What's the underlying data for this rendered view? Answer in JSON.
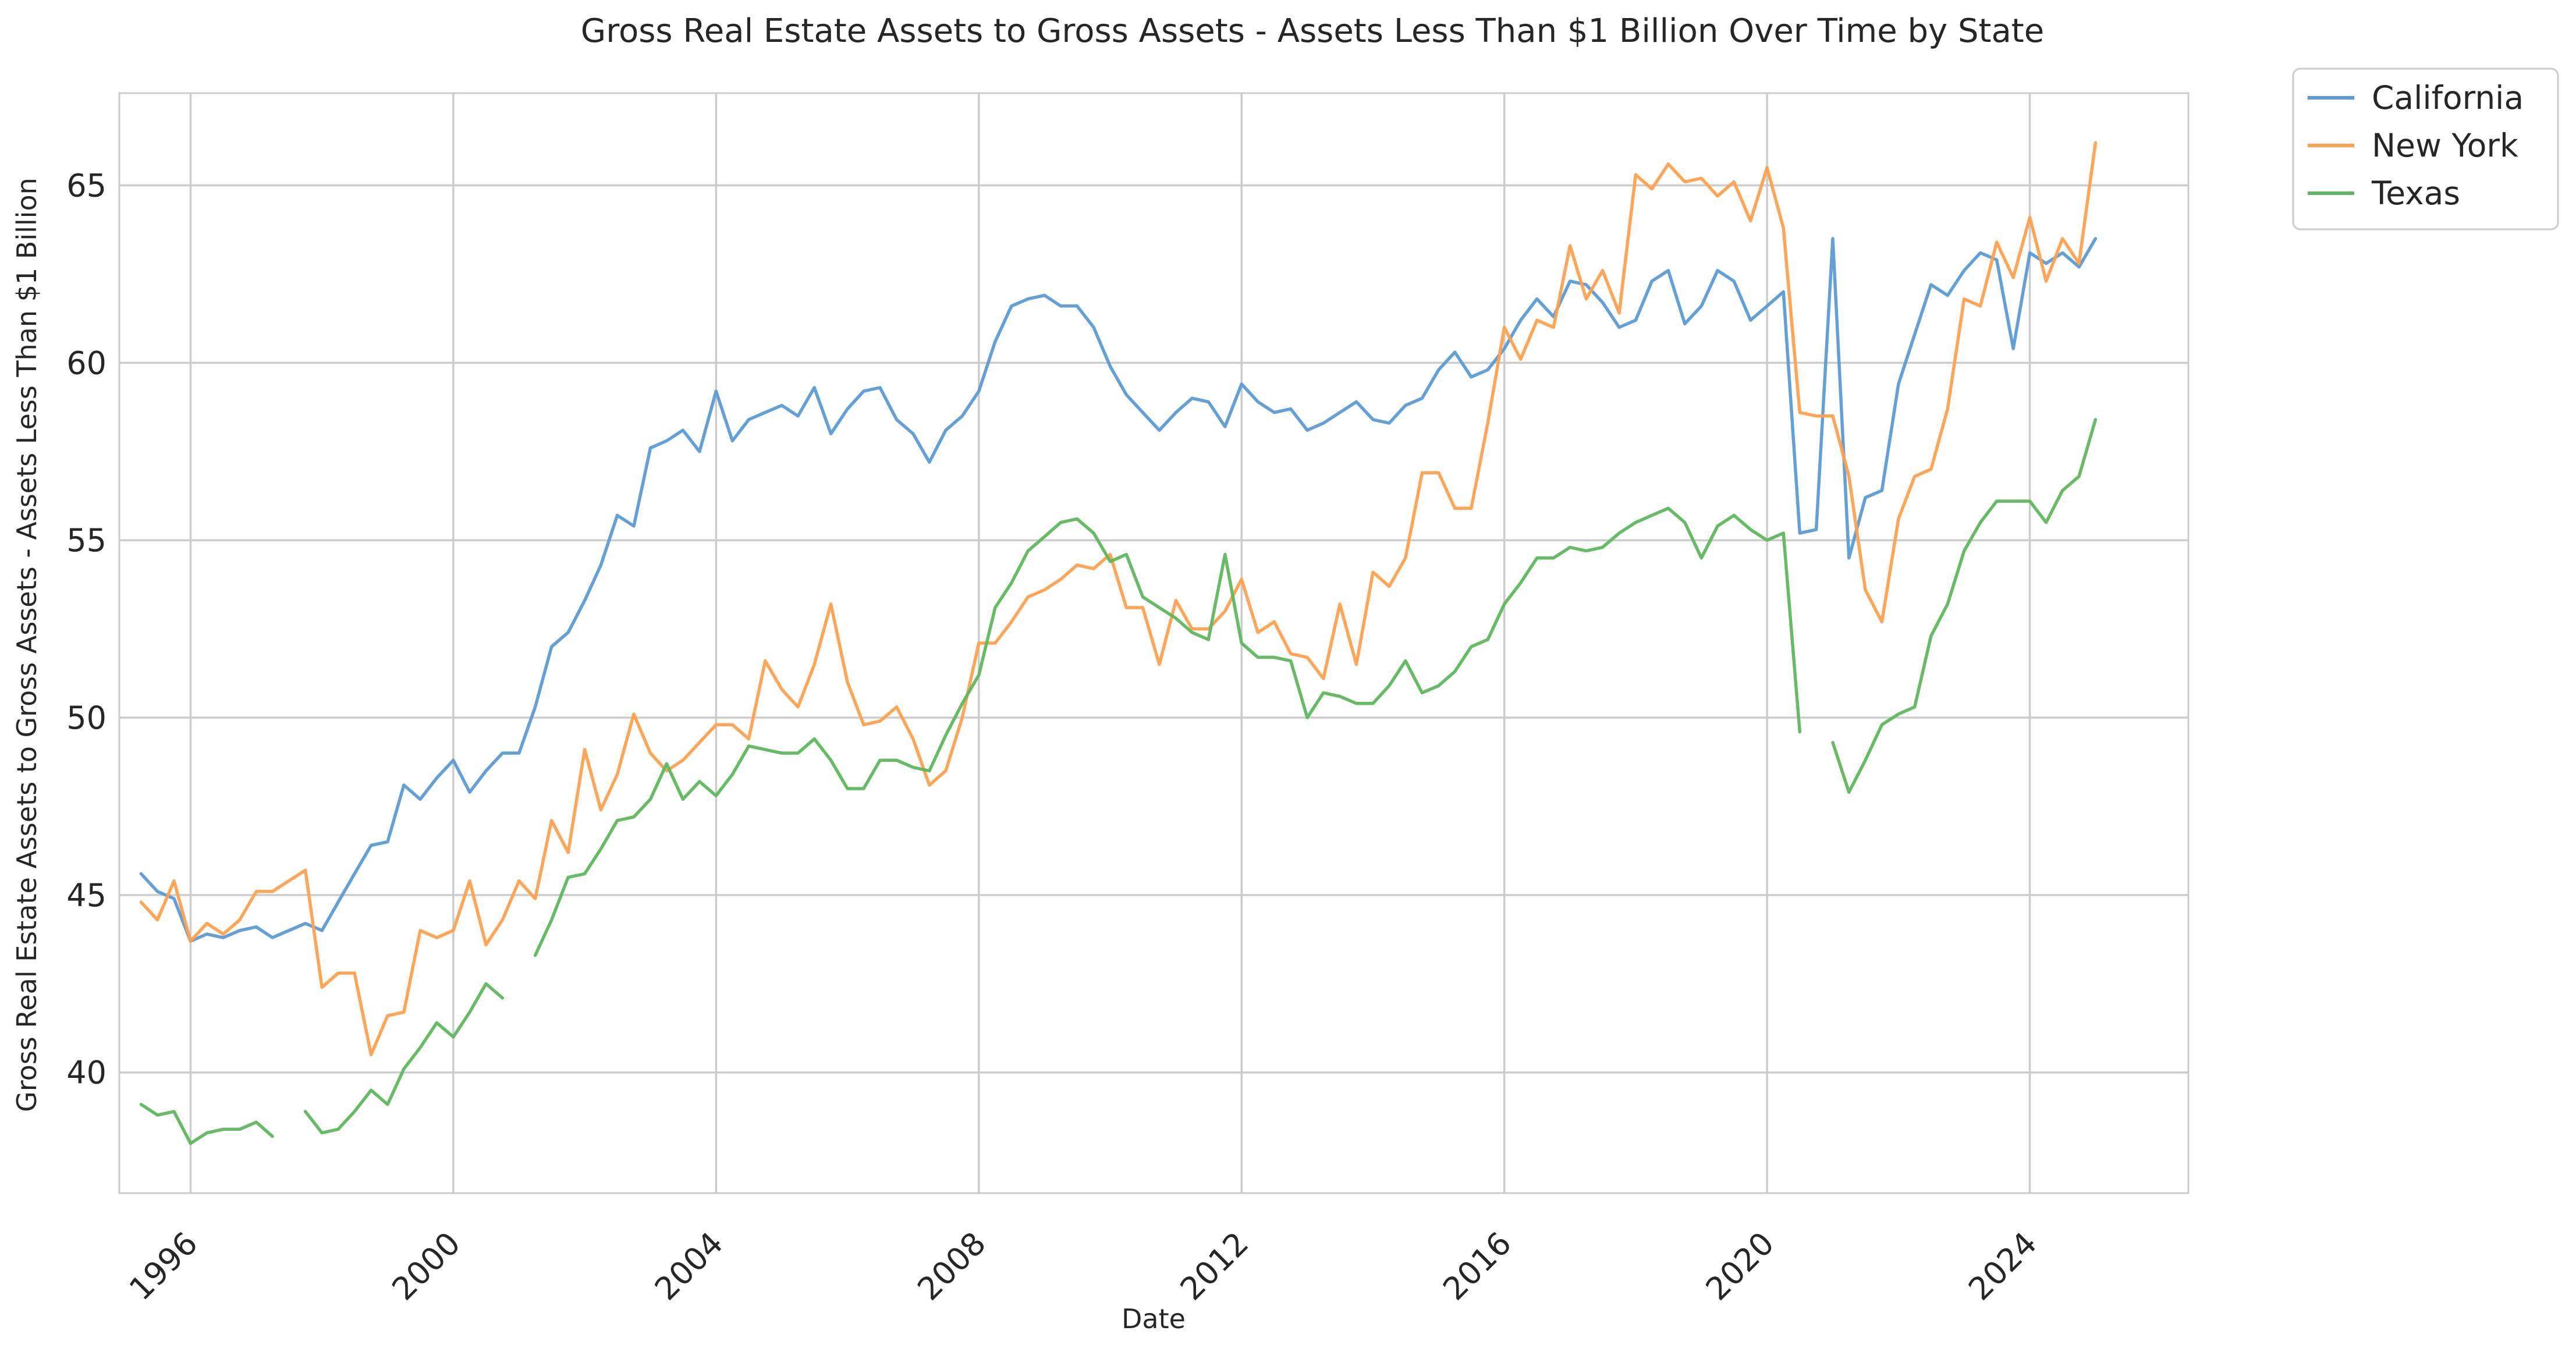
{
  "chart_data": {
    "type": "line",
    "title": "Gross Real Estate Assets to Gross Assets - Assets Less Than $1 Billion Over Time by State",
    "xlabel": "Date",
    "ylabel": "Gross Real Estate Assets to Gross Assets - Assets Less Than $1 Billion",
    "x_is_date": true,
    "xlim": [
      "1994-12-01",
      "2026-06-01"
    ],
    "ylim": [
      36.6,
      67.6
    ],
    "x_ticks": [
      "1996",
      "2000",
      "2004",
      "2008",
      "2012",
      "2016",
      "2020",
      "2024"
    ],
    "y_ticks": [
      40,
      45,
      50,
      55,
      60,
      65
    ],
    "grid": true,
    "legend_position": "outside-top-right",
    "colors": {
      "California": "#5a9bd5",
      "New York": "#ffa04d",
      "Texas": "#5db85c",
      "grid": "#cccccc",
      "spine": "#cccccc",
      "text": "#262626"
    },
    "x": [
      "1995-04-01",
      "1995-07-01",
      "1995-10-01",
      "1996-01-01",
      "1996-04-01",
      "1996-07-01",
      "1996-10-01",
      "1997-01-01",
      "1997-04-01",
      "1997-07-01",
      "1997-10-01",
      "1998-01-01",
      "1998-04-01",
      "1998-07-01",
      "1998-10-01",
      "1999-01-01",
      "1999-04-01",
      "1999-07-01",
      "1999-10-01",
      "2000-01-01",
      "2000-04-01",
      "2000-07-01",
      "2000-10-01",
      "2001-01-01",
      "2001-04-01",
      "2001-07-01",
      "2001-10-01",
      "2002-01-01",
      "2002-04-01",
      "2002-07-01",
      "2002-10-01",
      "2003-01-01",
      "2003-04-01",
      "2003-07-01",
      "2003-10-01",
      "2004-01-01",
      "2004-04-01",
      "2004-07-01",
      "2004-10-01",
      "2005-01-01",
      "2005-04-01",
      "2005-07-01",
      "2005-10-01",
      "2006-01-01",
      "2006-04-01",
      "2006-07-01",
      "2006-10-01",
      "2007-01-01",
      "2007-04-01",
      "2007-07-01",
      "2007-10-01",
      "2008-01-01",
      "2008-04-01",
      "2008-07-01",
      "2008-10-01",
      "2009-01-01",
      "2009-04-01",
      "2009-07-01",
      "2009-10-01",
      "2010-01-01",
      "2010-04-01",
      "2010-07-01",
      "2010-10-01",
      "2011-01-01",
      "2011-04-01",
      "2011-07-01",
      "2011-10-01",
      "2012-01-01",
      "2012-04-01",
      "2012-07-01",
      "2012-10-01",
      "2013-01-01",
      "2013-04-01",
      "2013-07-01",
      "2013-10-01",
      "2014-01-01",
      "2014-04-01",
      "2014-07-01",
      "2014-10-01",
      "2015-01-01",
      "2015-04-01",
      "2015-07-01",
      "2015-10-01",
      "2016-01-01",
      "2016-04-01",
      "2016-07-01",
      "2016-10-01",
      "2017-01-01",
      "2017-04-01",
      "2017-07-01",
      "2017-10-01",
      "2018-01-01",
      "2018-04-01",
      "2018-07-01",
      "2018-10-01",
      "2019-01-01",
      "2019-04-01",
      "2019-07-01",
      "2019-10-01",
      "2020-01-01",
      "2020-04-01",
      "2020-07-01",
      "2020-10-01",
      "2021-01-01",
      "2021-04-01",
      "2021-07-01",
      "2021-10-01",
      "2022-01-01",
      "2022-04-01",
      "2022-07-01",
      "2022-10-01",
      "2023-01-01",
      "2023-04-01",
      "2023-07-01",
      "2023-10-01",
      "2024-01-01",
      "2024-04-01",
      "2024-07-01",
      "2024-10-01",
      "2025-01-01"
    ],
    "series": [
      {
        "name": "California",
        "values": [
          45.6,
          45.1,
          44.9,
          43.7,
          43.9,
          43.8,
          44.0,
          44.1,
          43.8,
          44.0,
          44.2,
          44.0,
          44.8,
          45.6,
          46.4,
          46.5,
          48.1,
          47.7,
          48.3,
          48.8,
          47.9,
          48.5,
          49.0,
          49.0,
          50.3,
          52.0,
          52.4,
          53.3,
          54.3,
          55.7,
          55.4,
          57.6,
          57.8,
          58.1,
          57.5,
          59.2,
          57.8,
          58.4,
          58.6,
          58.8,
          58.5,
          59.3,
          58.0,
          58.7,
          59.2,
          59.3,
          58.4,
          58.0,
          57.2,
          58.1,
          58.5,
          59.2,
          60.6,
          61.6,
          61.8,
          61.9,
          61.6,
          61.6,
          61.0,
          59.9,
          59.1,
          58.6,
          58.1,
          58.6,
          59.0,
          58.9,
          58.2,
          59.4,
          58.9,
          58.6,
          58.7,
          58.1,
          58.3,
          58.6,
          58.9,
          58.4,
          58.3,
          58.8,
          59.0,
          59.8,
          60.3,
          59.6,
          59.8,
          60.4,
          61.2,
          61.8,
          61.3,
          62.3,
          62.2,
          61.7,
          61.0,
          61.2,
          62.3,
          62.6,
          61.1,
          61.6,
          62.6,
          62.3,
          61.2,
          61.6,
          62.0,
          55.2,
          55.3,
          63.5,
          54.5,
          56.2,
          56.4,
          59.4,
          60.8,
          62.2,
          61.9,
          62.6,
          63.1,
          62.9,
          60.4,
          63.1,
          62.8,
          63.1,
          62.7,
          63.5
        ]
      },
      {
        "name": "New York",
        "values": [
          44.8,
          44.3,
          45.4,
          43.7,
          44.2,
          43.9,
          44.3,
          45.1,
          45.1,
          45.4,
          45.7,
          42.4,
          42.8,
          42.8,
          40.5,
          41.6,
          41.7,
          44.0,
          43.8,
          44.0,
          45.4,
          43.6,
          44.3,
          45.4,
          44.9,
          47.1,
          46.2,
          49.1,
          47.4,
          48.4,
          50.1,
          49.0,
          48.5,
          48.8,
          49.3,
          49.8,
          49.8,
          49.4,
          51.6,
          50.8,
          50.3,
          51.5,
          53.2,
          51.0,
          49.8,
          49.9,
          50.3,
          49.4,
          48.1,
          48.5,
          50.0,
          52.1,
          52.1,
          52.7,
          53.4,
          53.6,
          53.9,
          54.3,
          54.2,
          54.6,
          53.1,
          53.1,
          51.5,
          53.3,
          52.5,
          52.5,
          53.0,
          53.9,
          52.4,
          52.7,
          51.8,
          51.7,
          51.1,
          53.2,
          51.5,
          54.1,
          53.7,
          54.5,
          56.9,
          56.9,
          55.9,
          55.9,
          58.3,
          61.0,
          60.1,
          61.2,
          61.0,
          63.3,
          61.8,
          62.6,
          61.4,
          65.3,
          64.9,
          65.6,
          65.1,
          65.2,
          64.7,
          65.1,
          64.0,
          65.5,
          63.8,
          58.6,
          58.5,
          58.5,
          56.8,
          53.6,
          52.7,
          55.6,
          56.8,
          57.0,
          58.7,
          61.8,
          61.6,
          63.4,
          62.4,
          64.1,
          62.3,
          63.5,
          62.8,
          66.2
        ]
      },
      {
        "name": "Texas",
        "values": [
          39.1,
          38.8,
          38.9,
          38.0,
          38.3,
          38.4,
          38.4,
          38.6,
          38.2,
          null,
          38.9,
          38.3,
          38.4,
          38.9,
          39.5,
          39.1,
          40.1,
          40.7,
          41.4,
          41.0,
          41.7,
          42.5,
          42.1,
          null,
          43.3,
          44.3,
          45.5,
          45.6,
          46.3,
          47.1,
          47.2,
          47.7,
          48.7,
          47.7,
          48.2,
          47.8,
          48.4,
          49.2,
          49.1,
          49.0,
          49.0,
          49.4,
          48.8,
          48.0,
          48.0,
          48.8,
          48.8,
          48.6,
          48.5,
          49.5,
          50.4,
          51.2,
          53.1,
          53.8,
          54.7,
          55.1,
          55.5,
          55.6,
          55.2,
          54.4,
          54.6,
          53.4,
          53.1,
          52.8,
          52.4,
          52.2,
          54.6,
          52.1,
          51.7,
          51.7,
          51.6,
          50.0,
          50.7,
          50.6,
          50.4,
          50.4,
          50.9,
          51.6,
          50.7,
          50.9,
          51.3,
          52.0,
          52.2,
          53.2,
          53.8,
          54.5,
          54.5,
          54.8,
          54.7,
          54.8,
          55.2,
          55.5,
          55.7,
          55.9,
          55.5,
          54.5,
          55.4,
          55.7,
          55.3,
          55.0,
          55.2,
          49.6,
          null,
          49.3,
          47.9,
          48.8,
          49.8,
          50.1,
          50.3,
          52.3,
          53.2,
          54.7,
          55.5,
          56.1,
          56.1,
          56.1,
          55.5,
          56.4,
          56.8,
          58.4
        ]
      }
    ]
  }
}
